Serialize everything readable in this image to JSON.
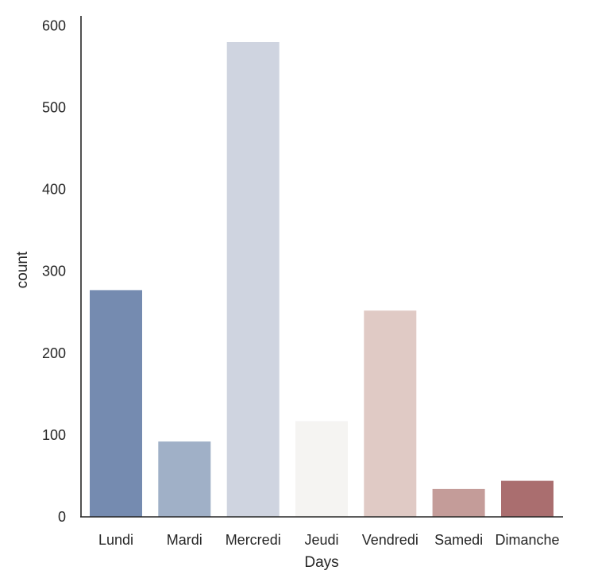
{
  "chart_data": {
    "type": "bar",
    "title": "",
    "xlabel": "Days",
    "ylabel": "count",
    "categories": [
      "Lundi",
      "Mardi",
      "Mercredi",
      "Jeudi",
      "Vendredi",
      "Samedi",
      "Dimanche"
    ],
    "values": [
      277,
      92,
      580,
      117,
      252,
      34,
      44
    ],
    "colors": [
      "#758bb0",
      "#a0b0c7",
      "#cfd4e0",
      "#f5f4f2",
      "#e0cac5",
      "#c49c99",
      "#aa6e6f"
    ],
    "ylim": [
      0,
      600
    ],
    "yticks": [
      0,
      100,
      200,
      300,
      400,
      500,
      600
    ],
    "grid": false
  }
}
